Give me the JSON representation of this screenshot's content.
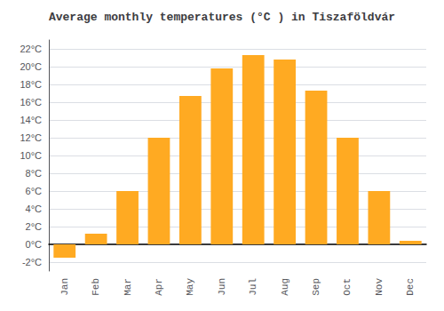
{
  "chart_data": {
    "type": "bar",
    "title": "Average monthly temperatures (°C ) in Tiszaföldvár",
    "categories": [
      "Jan",
      "Feb",
      "Mar",
      "Apr",
      "May",
      "Jun",
      "Jul",
      "Aug",
      "Sep",
      "Oct",
      "Nov",
      "Dec"
    ],
    "values": [
      -1.5,
      1.2,
      6.0,
      12.0,
      16.7,
      19.8,
      21.3,
      20.8,
      17.3,
      12.0,
      6.0,
      0.4
    ],
    "color": "#FFAA22",
    "ylim": [
      -3,
      23
    ],
    "yticks": [
      {
        "value": -2,
        "label": "-2°C"
      },
      {
        "value": 0,
        "label": "0°C"
      },
      {
        "value": 2,
        "label": "2°C"
      },
      {
        "value": 4,
        "label": "4°C"
      },
      {
        "value": 6,
        "label": "6°C"
      },
      {
        "value": 8,
        "label": "8°C"
      },
      {
        "value": 10,
        "label": "10°C"
      },
      {
        "value": 12,
        "label": "12°C"
      },
      {
        "value": 14,
        "label": "14°C"
      },
      {
        "value": 16,
        "label": "16°C"
      },
      {
        "value": 18,
        "label": "18°C"
      },
      {
        "value": 20,
        "label": "20°C"
      },
      {
        "value": 22,
        "label": "22°C"
      }
    ],
    "grid": true
  }
}
